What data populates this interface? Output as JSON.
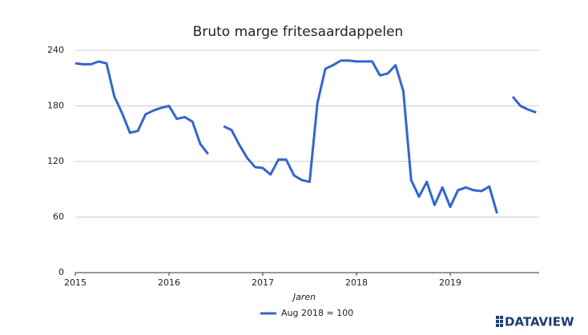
{
  "chart_data": {
    "type": "line",
    "title": "Bruto marge fritesaardappelen",
    "x_label": "Jaren",
    "brand": "DATAVIEW",
    "x": [
      2015,
      2015.083,
      2015.167,
      2015.25,
      2015.333,
      2015.417,
      2015.5,
      2015.583,
      2015.667,
      2015.75,
      2015.833,
      2015.917,
      2016,
      2016.083,
      2016.167,
      2016.25,
      2016.333,
      2016.417,
      2016.5,
      2016.583,
      2016.667,
      2016.75,
      2016.833,
      2016.917,
      2017,
      2017.083,
      2017.167,
      2017.25,
      2017.333,
      2017.417,
      2017.5,
      2017.583,
      2017.667,
      2017.75,
      2017.833,
      2017.917,
      2018,
      2018.083,
      2018.167,
      2018.25,
      2018.333,
      2018.417,
      2018.5,
      2018.583,
      2018.667,
      2018.75,
      2018.833,
      2018.917,
      2019,
      2019.083,
      2019.167,
      2019.25,
      2019.333,
      2019.417,
      2019.5,
      2019.583,
      2019.667,
      2019.75,
      2019.833,
      2019.917
    ],
    "series": [
      {
        "name": "Aug 2018 = 100",
        "color": "#3366cc",
        "values": [
          226,
          225,
          225,
          228,
          226,
          190,
          172,
          151,
          153,
          171,
          175,
          178,
          180,
          166,
          168,
          163,
          139,
          128,
          null,
          158,
          154,
          138,
          124,
          114,
          113,
          106,
          122,
          122,
          105,
          100,
          98,
          183,
          220,
          224,
          229,
          229,
          228,
          228,
          228,
          213,
          215,
          224,
          196,
          100,
          82,
          98,
          73,
          92,
          71,
          89,
          92,
          89,
          88,
          93,
          64,
          null,
          190,
          180,
          176,
          173
        ]
      }
    ],
    "xlim": [
      2015,
      2020
    ],
    "xticks": [
      2015,
      2016,
      2017,
      2018,
      2019
    ],
    "ylim": [
      0,
      240
    ],
    "yticks": [
      0,
      60,
      120,
      180,
      240
    ],
    "grid": true,
    "legend": "bottom"
  }
}
